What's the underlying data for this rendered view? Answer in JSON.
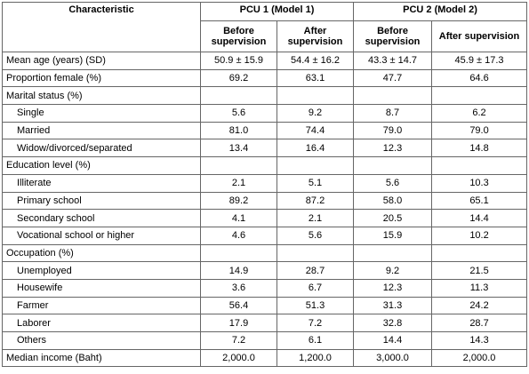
{
  "table": {
    "header": {
      "characteristic": "Characteristic",
      "groups": [
        "PCU 1 (Model 1)",
        "PCU 2 (Model 2)"
      ],
      "subheaders": [
        "Before supervision",
        "After supervision",
        "Before supervision",
        "After supervision"
      ]
    },
    "rows": [
      {
        "label": "Mean age (years) (SD)",
        "values": [
          "50.9 ± 15.9",
          "54.4 ± 16.2",
          "43.3 ± 14.7",
          "45.9 ± 17.3"
        ]
      },
      {
        "label": "Proportion female (%)",
        "values": [
          "69.2",
          "63.1",
          "47.7",
          "64.6"
        ]
      },
      {
        "label": "Marital status (%)",
        "items": [
          {
            "label": "Single",
            "values": [
              "5.6",
              "9.2",
              "8.7",
              "6.2"
            ]
          },
          {
            "label": "Married",
            "values": [
              "81.0",
              "74.4",
              "79.0",
              "79.0"
            ]
          },
          {
            "label": "Widow/divorced/separated",
            "values": [
              "13.4",
              "16.4",
              "12.3",
              "14.8"
            ]
          }
        ]
      },
      {
        "label": "Education level (%)",
        "items": [
          {
            "label": "Illiterate",
            "values": [
              "2.1",
              "5.1",
              "5.6",
              "10.3"
            ]
          },
          {
            "label": "Primary school",
            "values": [
              "89.2",
              "87.2",
              "58.0",
              "65.1"
            ]
          },
          {
            "label": "Secondary school",
            "values": [
              "4.1",
              "2.1",
              "20.5",
              "14.4"
            ]
          },
          {
            "label": "Vocational school or higher",
            "values": [
              "4.6",
              "5.6",
              "15.9",
              "10.2"
            ]
          }
        ]
      },
      {
        "label": "Occupation (%)",
        "items": [
          {
            "label": "Unemployed",
            "values": [
              "14.9",
              "28.7",
              "9.2",
              "21.5"
            ]
          },
          {
            "label": "Housewife",
            "values": [
              "3.6",
              "6.7",
              "12.3",
              "11.3"
            ]
          },
          {
            "label": "Farmer",
            "values": [
              "56.4",
              "51.3",
              "31.3",
              "24.2"
            ]
          },
          {
            "label": "Laborer",
            "values": [
              "17.9",
              "7.2",
              "32.8",
              "28.7"
            ]
          },
          {
            "label": "Others",
            "values": [
              "7.2",
              "6.1",
              "14.4",
              "14.3"
            ]
          }
        ]
      },
      {
        "label": "Median income (Baht)",
        "values": [
          "2,000.0",
          "1,200.0",
          "3,000.0",
          "2,000.0"
        ]
      }
    ]
  }
}
